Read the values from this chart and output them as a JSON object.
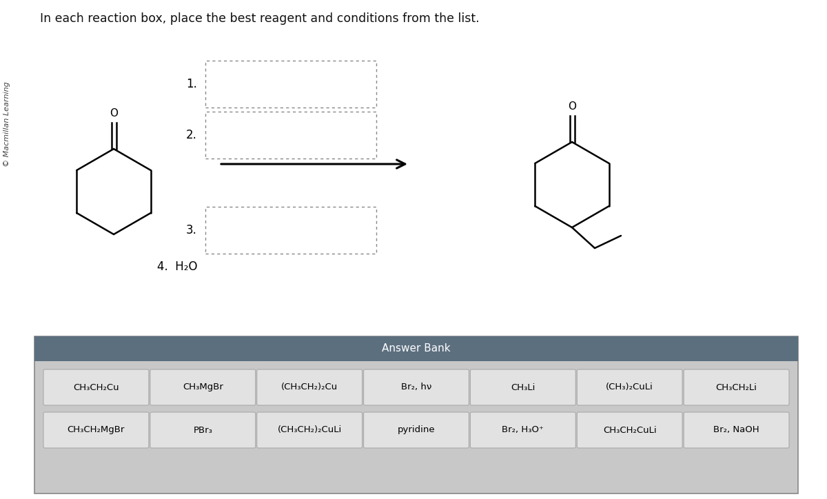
{
  "title_text": "In each reaction box, place the best reagent and conditions from the list.",
  "copyright_text": "© Macmillan Learning",
  "step4_text": "4.  H₂O",
  "answer_bank_title": "Answer Bank",
  "answer_bank_bg": "#5c6f7f",
  "answer_bank_cell_bg": "#e2e2e2",
  "answer_bank_outer_bg": "#c8c8c8",
  "background_color": "#ffffff",
  "row1_items": [
    "CH₃CH₂Cu",
    "CH₃MgBr",
    "(CH₃CH₂)₂Cu",
    "Br₂, hν",
    "CH₃Li",
    "(CH₃)₂CuLi",
    "CH₃CH₂Li"
  ],
  "row2_items": [
    "CH₃CH₂MgBr",
    "PBr₃",
    "(CH₃CH₂)₂CuLi",
    "pyridine",
    "Br₂, H₃O⁺",
    "CH₃CH₂CuLi",
    "Br₂, NaOH"
  ],
  "box_labels": [
    "1.",
    "2.",
    "3."
  ],
  "fig_width": 12.0,
  "fig_height": 7.24
}
